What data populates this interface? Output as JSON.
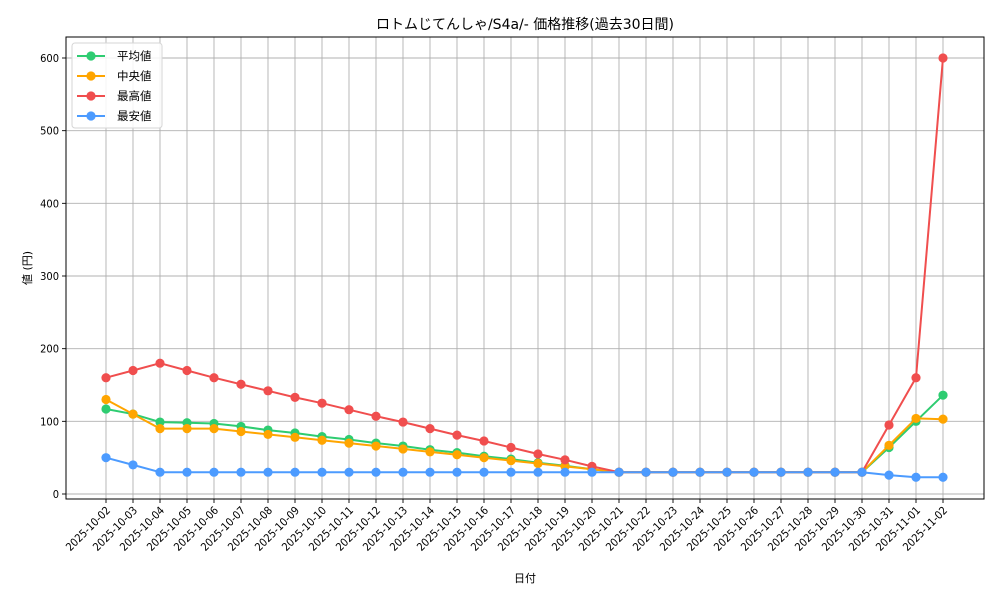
{
  "chart_data": {
    "type": "line",
    "title": "ロトムじてんしゃ/S4a/- 価格推移(過去30日間)",
    "xlabel": "日付",
    "ylabel": "値 (円)",
    "ylim": [
      0,
      630
    ],
    "yticks": [
      0,
      100,
      200,
      300,
      400,
      500,
      600
    ],
    "grid": true,
    "legend_position": "upper left",
    "categories": [
      "2025-10-02",
      "2025-10-03",
      "2025-10-04",
      "2025-10-05",
      "2025-10-06",
      "2025-10-07",
      "2025-10-08",
      "2025-10-09",
      "2025-10-10",
      "2025-10-11",
      "2025-10-12",
      "2025-10-13",
      "2025-10-14",
      "2025-10-15",
      "2025-10-16",
      "2025-10-17",
      "2025-10-18",
      "2025-10-19",
      "2025-10-20",
      "2025-10-21",
      "2025-10-22",
      "2025-10-23",
      "2025-10-24",
      "2025-10-25",
      "2025-10-26",
      "2025-10-27",
      "2025-10-28",
      "2025-10-29",
      "2025-10-30",
      "2025-10-31",
      "2025-11-01",
      "2025-11-02"
    ],
    "series": [
      {
        "name": "平均値",
        "color": "#2ecc71",
        "values": [
          117,
          110,
          99,
          98,
          97,
          93,
          88,
          84,
          79,
          75,
          70,
          66,
          61,
          57,
          52,
          48,
          43,
          39,
          34,
          30,
          30,
          30,
          30,
          30,
          30,
          30,
          30,
          30,
          30,
          64,
          100,
          136
        ]
      },
      {
        "name": "中央値",
        "color": "#ffa500",
        "values": [
          130,
          110,
          90,
          90,
          90,
          86,
          82,
          78,
          74,
          70,
          66,
          62,
          58,
          54,
          50,
          46,
          42,
          38,
          34,
          30,
          30,
          30,
          30,
          30,
          30,
          30,
          30,
          30,
          30,
          67,
          104,
          103
        ]
      },
      {
        "name": "最高値",
        "color": "#f04e4e",
        "values": [
          160,
          170,
          180,
          170,
          160,
          151,
          142,
          133,
          125,
          116,
          107,
          99,
          90,
          81,
          73,
          64,
          55,
          47,
          38,
          30,
          30,
          30,
          30,
          30,
          30,
          30,
          30,
          30,
          30,
          95,
          160,
          600
        ]
      },
      {
        "name": "最安値",
        "color": "#4c9bff",
        "values": [
          50,
          40,
          30,
          30,
          30,
          30,
          30,
          30,
          30,
          30,
          30,
          30,
          30,
          30,
          30,
          30,
          30,
          30,
          30,
          30,
          30,
          30,
          30,
          30,
          30,
          30,
          30,
          30,
          30,
          26,
          23,
          23
        ]
      }
    ]
  }
}
